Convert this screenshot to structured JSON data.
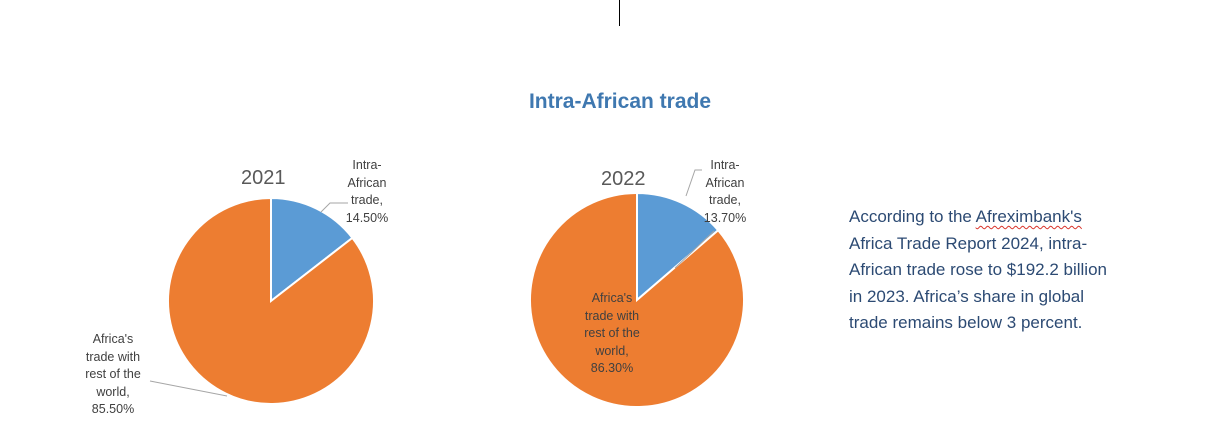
{
  "chart_data": [
    {
      "type": "pie",
      "title": "2021",
      "slices": [
        {
          "label": "Intra-African trade",
          "value": 14.5,
          "display": [
            "Intra-",
            "African",
            "trade,",
            "14.50%"
          ],
          "color": "#5b9bd5"
        },
        {
          "label": "Africa's trade with rest of the world",
          "value": 85.5,
          "display": [
            "Africa's",
            "trade with",
            "rest of the",
            "world,",
            "85.50%"
          ],
          "color": "#ed7d31"
        }
      ]
    },
    {
      "type": "pie",
      "title": "2022",
      "slices": [
        {
          "label": "Intra-African trade",
          "value": 13.7,
          "display": [
            "Intra-",
            "African",
            "trade,",
            "13.70%"
          ],
          "color": "#5b9bd5"
        },
        {
          "label": "Africa's trade with rest of the world",
          "value": 86.3,
          "display": [
            "Africa's",
            "trade with",
            "rest of the",
            "world,",
            "86.30%"
          ],
          "color": "#ed7d31"
        }
      ]
    }
  ],
  "page": {
    "title": "Intra-African trade",
    "note": {
      "before": "According to the ",
      "misspelled": "Afreximbank's",
      "after": " Africa Trade Report 2024, intra-African trade rose to $192.2 billion in 2023. Africa’s share in global trade remains below 3 percent."
    }
  }
}
